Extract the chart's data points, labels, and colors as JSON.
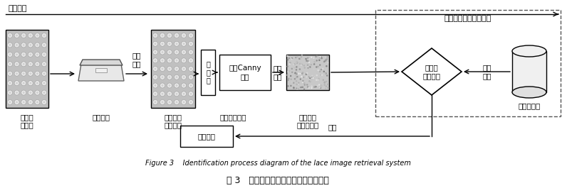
{
  "bg_color": "#ffffff",
  "top_label": "辨识阶段",
  "fig3_en": "Figure 3    Identification process diagram of the lace image retrieval system",
  "fig3_cn": "图 3   蕾丝花边检索系统的辨识阶段框图",
  "label_lace": "待测蕾\n丝花边",
  "label_scanner": "采集设备",
  "label_img_collect": "图像\n采集",
  "label_collected": "采集蕾丝\n花边图像",
  "label_preprocess": "预\n处\n理",
  "label_canny": "彩色Canny\n图像",
  "label_feat_extract": "特征\n提取",
  "label_unit": "一个完全组织",
  "label_feat_vec": "特征向量\n提取的特征",
  "label_match": "一对多\n层次匹配",
  "label_match_title": "特征匹配（层次匹配）",
  "label_feat_vec2": "特征\n向量",
  "label_db": "特征数据库",
  "label_result": "检索结果",
  "label_decision": "决策"
}
